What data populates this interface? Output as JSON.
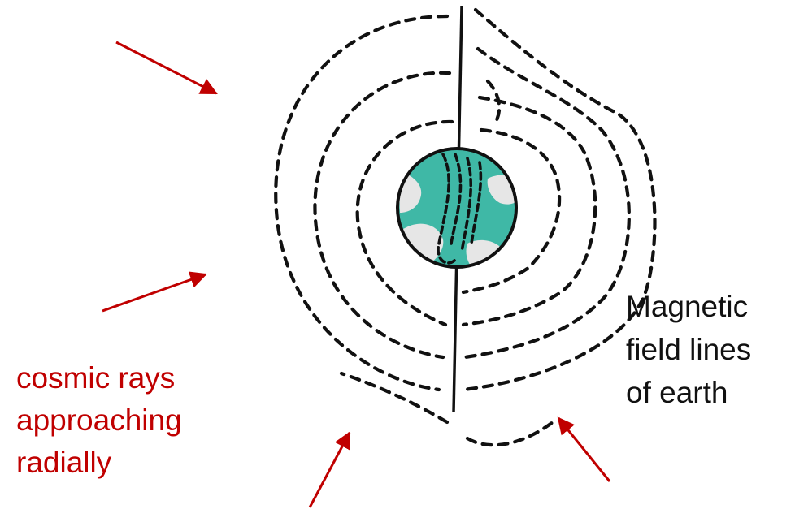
{
  "labels": {
    "cosmic_rays": [
      "cosmic rays",
      "approaching",
      "radially"
    ],
    "field_lines": [
      "Magnetic",
      "field lines",
      "of earth"
    ]
  },
  "colors": {
    "arrow": "#c00000",
    "earth_ocean": "#3fb8a6",
    "earth_land": "#e6e6e6",
    "field_lines": "#111111"
  },
  "icons": {
    "earth": "earth-globe-icon",
    "arrow": "arrow-icon"
  }
}
